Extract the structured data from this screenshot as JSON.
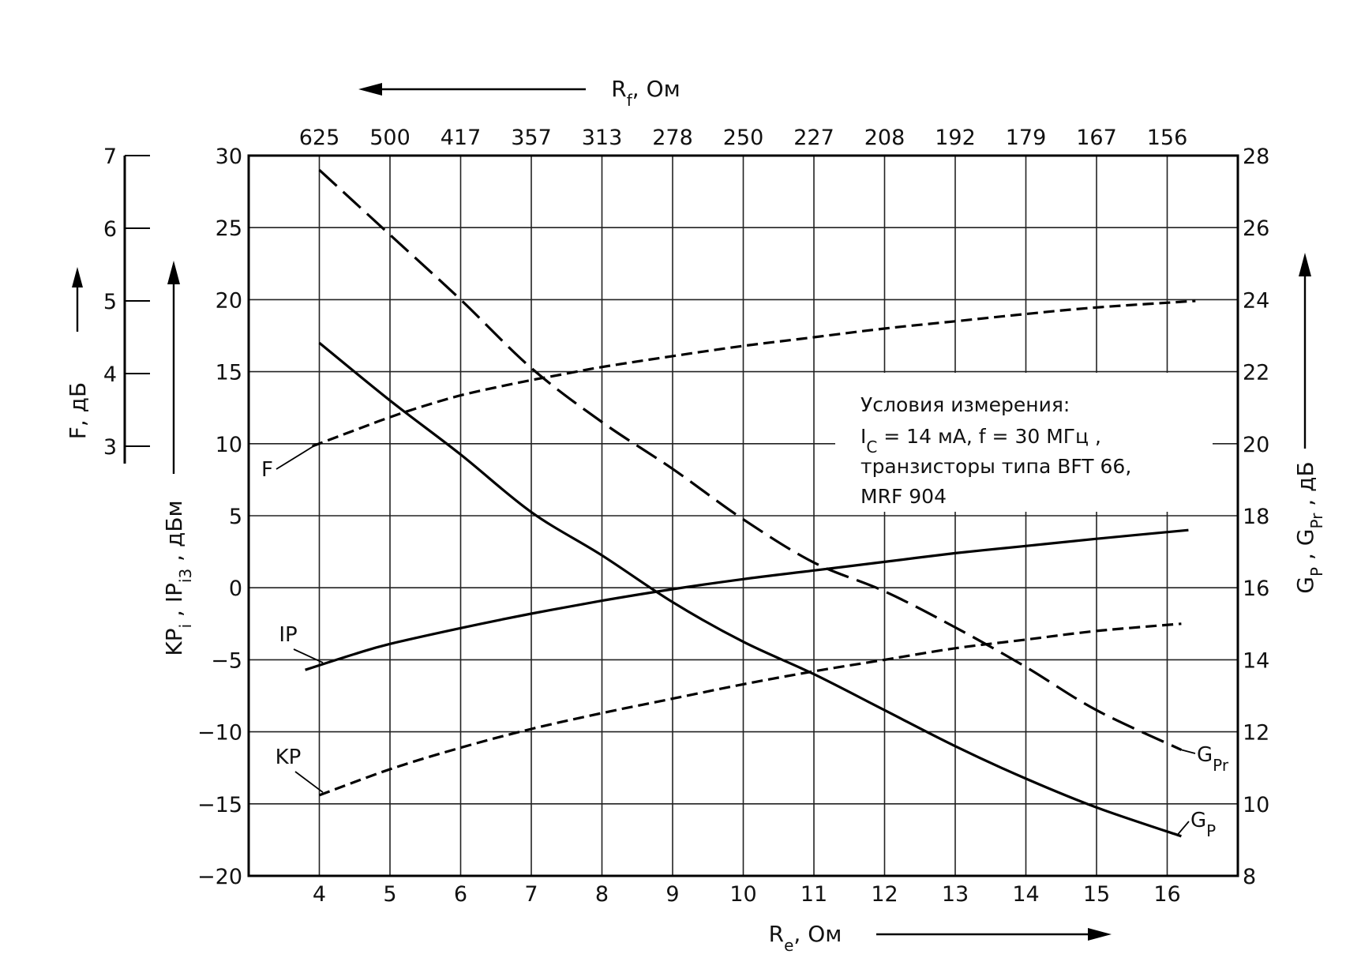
{
  "chart_data": {
    "type": "line",
    "xlabel": "Rₑ, Ом",
    "x2label": "R_f, Ом",
    "ylabel_left": "KP_i, IP_i3, дБм",
    "ylabel_left2": "F, дБ",
    "ylabel_right": "G_P, G_Pr, дБ",
    "xlim": [
      3.0,
      17.0
    ],
    "x_ticks": [
      4,
      5,
      6,
      7,
      8,
      9,
      10,
      11,
      12,
      13,
      14,
      15,
      16
    ],
    "x2_ticks": [
      {
        "x": 4,
        "label": "625"
      },
      {
        "x": 5,
        "label": "500"
      },
      {
        "x": 6,
        "label": "417"
      },
      {
        "x": 7,
        "label": "357"
      },
      {
        "x": 8,
        "label": "313"
      },
      {
        "x": 9,
        "label": "278"
      },
      {
        "x": 10,
        "label": "250"
      },
      {
        "x": 11,
        "label": "227"
      },
      {
        "x": 12,
        "label": "208"
      },
      {
        "x": 13,
        "label": "192"
      },
      {
        "x": 14,
        "label": "179"
      },
      {
        "x": 15,
        "label": "167"
      },
      {
        "x": 16,
        "label": "156"
      }
    ],
    "ylim_left": [
      -20,
      30
    ],
    "y_ticks_left": [
      30,
      25,
      20,
      15,
      10,
      5,
      0,
      -5,
      -10,
      -15,
      -20
    ],
    "ylim_right": [
      8,
      28
    ],
    "y_ticks_right": [
      28,
      26,
      24,
      22,
      20,
      18,
      16,
      14,
      12,
      10,
      8
    ],
    "ylim_F": [
      3,
      7
    ],
    "y_ticks_F": [
      7,
      6,
      5,
      4,
      3
    ],
    "grid": true,
    "annotation": {
      "title": "Условия измерения:",
      "lines": [
        "I_C = 14 мА,  f = 30 МГц ,",
        "транзисторы типа  BFT 66,",
        "MRF 904"
      ]
    },
    "series": [
      {
        "name": "F",
        "axis": "F",
        "style": "short-dash",
        "x": [
          3.9,
          4.5,
          5.0,
          5.5,
          6.0,
          6.5,
          7.0,
          7.5,
          8.0,
          9.0,
          10.0,
          11.0,
          12.0,
          13.0,
          14.0,
          15.0,
          16.4
        ],
        "y": [
          3.0,
          3.22,
          3.4,
          3.56,
          3.7,
          3.81,
          3.91,
          4.0,
          4.09,
          4.24,
          4.38,
          4.5,
          4.62,
          4.72,
          4.82,
          4.91,
          5.0
        ]
      },
      {
        "name": "IP",
        "axis": "left",
        "style": "solid",
        "x": [
          3.8,
          4.5,
          5.0,
          6.0,
          7.0,
          8.0,
          9.0,
          10.0,
          11.0,
          12.0,
          13.0,
          14.0,
          15.0,
          16.3
        ],
        "y": [
          -5.7,
          -4.6,
          -3.9,
          -2.8,
          -1.8,
          -0.9,
          -0.1,
          0.6,
          1.2,
          1.8,
          2.4,
          2.9,
          3.4,
          4.0
        ]
      },
      {
        "name": "KP",
        "axis": "left",
        "style": "short-dash",
        "x": [
          4.0,
          5.0,
          6.0,
          7.0,
          8.0,
          9.0,
          10.0,
          11.0,
          12.0,
          13.0,
          14.0,
          15.0,
          16.2
        ],
        "y": [
          -14.4,
          -12.6,
          -11.1,
          -9.8,
          -8.7,
          -7.7,
          -6.7,
          -5.8,
          -5.0,
          -4.2,
          -3.6,
          -3.0,
          -2.5
        ]
      },
      {
        "name": "G_P",
        "axis": "right",
        "style": "solid",
        "x": [
          4.0,
          5.0,
          6.0,
          7.0,
          8.0,
          9.0,
          10.0,
          11.0,
          12.0,
          13.0,
          14.0,
          15.0,
          16.2
        ],
        "y": [
          22.8,
          21.2,
          19.7,
          18.1,
          16.9,
          15.6,
          14.5,
          13.6,
          12.6,
          11.6,
          10.7,
          9.9,
          9.1
        ]
      },
      {
        "name": "G_Pr",
        "axis": "right",
        "style": "long-dash",
        "x": [
          4.0,
          5.0,
          6.0,
          7.0,
          8.0,
          9.0,
          10.0,
          11.0,
          12.0,
          13.0,
          14.0,
          15.0,
          16.2
        ],
        "y": [
          27.6,
          25.8,
          24.0,
          22.1,
          20.6,
          19.3,
          17.9,
          16.7,
          15.9,
          14.9,
          13.8,
          12.6,
          11.5
        ]
      }
    ]
  }
}
